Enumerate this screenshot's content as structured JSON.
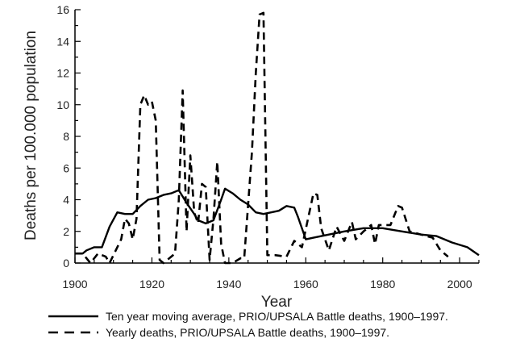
{
  "chart_data": {
    "type": "line",
    "title": "",
    "xlabel": "Year",
    "ylabel": "Deaths per 100.000 population",
    "xlim": [
      1900,
      2005
    ],
    "ylim": [
      0,
      16
    ],
    "x_ticks": [
      1900,
      1920,
      1940,
      1960,
      1980,
      2000
    ],
    "y_ticks": [
      0,
      2,
      4,
      6,
      8,
      10,
      12,
      14,
      16
    ],
    "grid": false,
    "legend_position": "bottom",
    "series": [
      {
        "name": "Ten year moving average, PRIO/UPSALA Battle deaths, 1900–1997.",
        "style": "solid",
        "points": [
          [
            1900,
            0.6
          ],
          [
            1902,
            0.6
          ],
          [
            1903,
            0.8
          ],
          [
            1905,
            1.0
          ],
          [
            1907,
            1.0
          ],
          [
            1909,
            2.3
          ],
          [
            1911,
            3.2
          ],
          [
            1913,
            3.1
          ],
          [
            1915,
            3.1
          ],
          [
            1917,
            3.6
          ],
          [
            1919,
            4.0
          ],
          [
            1921,
            4.1
          ],
          [
            1923,
            4.3
          ],
          [
            1925,
            4.4
          ],
          [
            1927,
            4.6
          ],
          [
            1929,
            3.8
          ],
          [
            1931,
            3.1
          ],
          [
            1932,
            2.7
          ],
          [
            1934,
            2.5
          ],
          [
            1936,
            2.7
          ],
          [
            1938,
            4.0
          ],
          [
            1939,
            4.7
          ],
          [
            1941,
            4.4
          ],
          [
            1943,
            4.0
          ],
          [
            1945,
            3.7
          ],
          [
            1947,
            3.2
          ],
          [
            1949,
            3.1
          ],
          [
            1951,
            3.2
          ],
          [
            1953,
            3.3
          ],
          [
            1955,
            3.6
          ],
          [
            1957,
            3.5
          ],
          [
            1958,
            2.9
          ],
          [
            1960,
            1.5
          ],
          [
            1962,
            1.6
          ],
          [
            1966,
            1.8
          ],
          [
            1970,
            2.0
          ],
          [
            1975,
            2.2
          ],
          [
            1980,
            2.2
          ],
          [
            1985,
            2.0
          ],
          [
            1990,
            1.8
          ],
          [
            1994,
            1.7
          ],
          [
            1998,
            1.3
          ],
          [
            2002,
            1.0
          ],
          [
            2005,
            0.5
          ]
        ]
      },
      {
        "name": "Yearly deaths, PRIO/UPSALA Battle deaths, 1900–1997.",
        "style": "dashed",
        "points": [
          [
            1900,
            0.6
          ],
          [
            1902,
            0.6
          ],
          [
            1904,
            0.0
          ],
          [
            1906,
            0.6
          ],
          [
            1908,
            0.4
          ],
          [
            1909,
            0.0
          ],
          [
            1911,
            1.0
          ],
          [
            1912,
            1.5
          ],
          [
            1913,
            2.8
          ],
          [
            1914,
            2.5
          ],
          [
            1915,
            1.5
          ],
          [
            1916,
            2.8
          ],
          [
            1917,
            10.0
          ],
          [
            1918,
            10.6
          ],
          [
            1919,
            10.0
          ],
          [
            1920,
            10.2
          ],
          [
            1921,
            9.0
          ],
          [
            1922,
            0.2
          ],
          [
            1923,
            0.0
          ],
          [
            1924,
            0.2
          ],
          [
            1926,
            0.6
          ],
          [
            1927,
            4.0
          ],
          [
            1928,
            10.9
          ],
          [
            1929,
            2.0
          ],
          [
            1930,
            6.8
          ],
          [
            1931,
            3.2
          ],
          [
            1932,
            2.5
          ],
          [
            1933,
            5.0
          ],
          [
            1934,
            4.8
          ],
          [
            1935,
            0.2
          ],
          [
            1936,
            2.8
          ],
          [
            1937,
            6.4
          ],
          [
            1938,
            1.2
          ],
          [
            1939,
            0.0
          ],
          [
            1941,
            0.0
          ],
          [
            1943,
            0.3
          ],
          [
            1944,
            0.3
          ],
          [
            1946,
            7.0
          ],
          [
            1947,
            12.0
          ],
          [
            1948,
            15.7
          ],
          [
            1949,
            15.8
          ],
          [
            1950,
            0.5
          ],
          [
            1952,
            0.5
          ],
          [
            1955,
            0.4
          ],
          [
            1957,
            1.4
          ],
          [
            1959,
            1.0
          ],
          [
            1962,
            4.4
          ],
          [
            1963,
            4.3
          ],
          [
            1964,
            2.2
          ],
          [
            1966,
            0.8
          ],
          [
            1968,
            2.3
          ],
          [
            1970,
            1.4
          ],
          [
            1972,
            2.6
          ],
          [
            1973,
            1.5
          ],
          [
            1975,
            2.0
          ],
          [
            1977,
            2.4
          ],
          [
            1978,
            1.2
          ],
          [
            1979,
            2.4
          ],
          [
            1980,
            2.4
          ],
          [
            1982,
            2.4
          ],
          [
            1984,
            3.6
          ],
          [
            1985,
            3.5
          ],
          [
            1987,
            2.0
          ],
          [
            1990,
            1.8
          ],
          [
            1993,
            1.6
          ],
          [
            1995,
            0.8
          ],
          [
            1997,
            0.4
          ]
        ]
      }
    ]
  }
}
